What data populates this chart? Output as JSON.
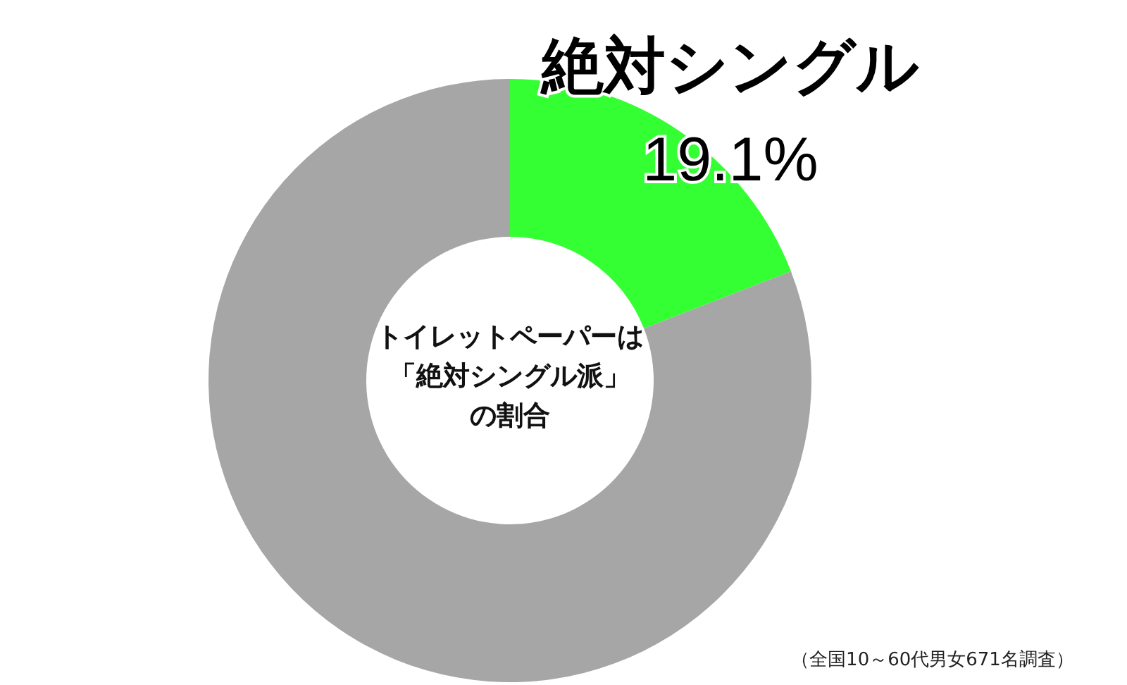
{
  "chart_data": {
    "type": "donut",
    "title": "トイレットペーパーは「絶対シングル派」の割合",
    "categories": [
      "絶対シングル",
      null
    ],
    "values": [
      19.1,
      80.9
    ],
    "colors": [
      "#33ff33",
      "#a6a6a6"
    ],
    "value_labels": [
      "19.1%",
      null
    ],
    "annotations": [
      "（全国10～60代男女671名調査）"
    ]
  }
}
